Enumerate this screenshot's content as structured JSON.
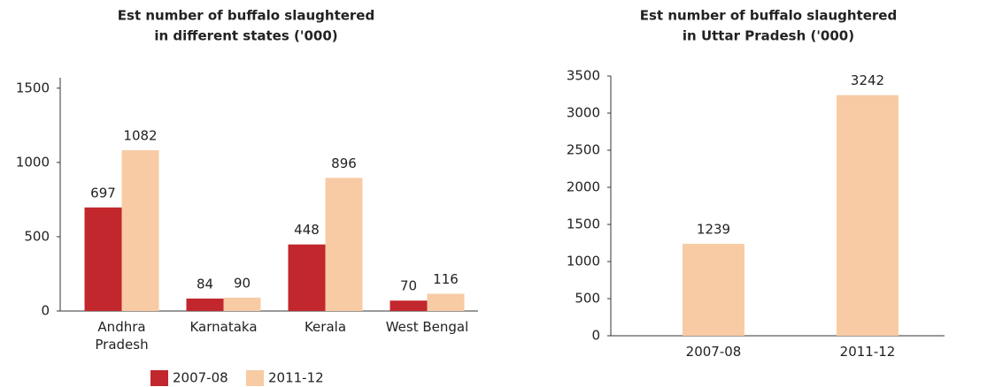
{
  "chart_data": [
    {
      "type": "bar",
      "title": [
        "Est number of buffalo slaughtered",
        "in different states ('000)"
      ],
      "categories": [
        "Andhra Pradesh",
        "Karnataka",
        "Kerala",
        "West Bengal"
      ],
      "series": [
        {
          "name": "2007-08",
          "color": "#c1272d",
          "values": [
            697,
            84,
            448,
            70
          ]
        },
        {
          "name": "2011-12",
          "color": "#f8cba4",
          "values": [
            1082,
            90,
            896,
            116
          ]
        }
      ],
      "ylim": [
        0,
        1570
      ],
      "yticks": [
        0,
        500,
        1000,
        1500
      ],
      "legend": "bottom"
    },
    {
      "type": "bar",
      "title": [
        "Est number of buffalo slaughtered",
        "in Uttar Pradesh ('000)"
      ],
      "categories": [
        "2007-08",
        "2011-12"
      ],
      "values": [
        1239,
        3242
      ],
      "color": "#f8cba4",
      "ylim": [
        0,
        3500
      ],
      "yticks": [
        0,
        500,
        1000,
        1500,
        2000,
        2500,
        3000,
        3500
      ]
    }
  ]
}
